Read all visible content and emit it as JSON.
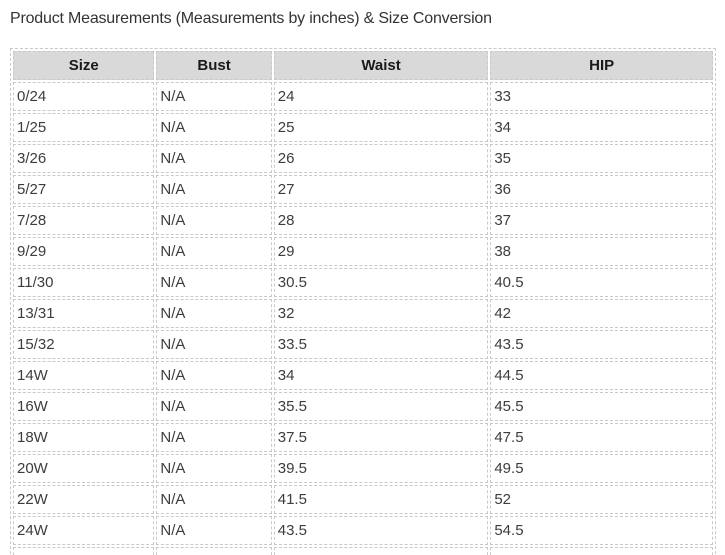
{
  "page": {
    "title": "Product Measurements (Measurements by inches) & Size Conversion"
  },
  "table": {
    "columns": [
      "Size",
      "Bust",
      "Waist",
      "HIP"
    ],
    "rows": [
      [
        "0/24",
        "N/A",
        "24",
        "33"
      ],
      [
        "1/25",
        "N/A",
        "25",
        "34"
      ],
      [
        "3/26",
        "N/A",
        "26",
        "35"
      ],
      [
        "5/27",
        "N/A",
        "27",
        "36"
      ],
      [
        "7/28",
        "N/A",
        "28",
        "37"
      ],
      [
        "9/29",
        "N/A",
        "29",
        "38"
      ],
      [
        "11/30",
        "N/A",
        "30.5",
        "40.5"
      ],
      [
        "13/31",
        "N/A",
        "32",
        "42"
      ],
      [
        "15/32",
        "N/A",
        "33.5",
        "43.5"
      ],
      [
        "14W",
        "N/A",
        "34",
        "44.5"
      ],
      [
        "16W",
        "N/A",
        "35.5",
        "45.5"
      ],
      [
        "18W",
        "N/A",
        "37.5",
        "47.5"
      ],
      [
        "20W",
        "N/A",
        "39.5",
        "49.5"
      ],
      [
        "22W",
        "N/A",
        "41.5",
        "52"
      ],
      [
        "24W",
        "N/A",
        "43.5",
        "54.5"
      ]
    ],
    "colors": {
      "header_bg": "#d9d9d9",
      "border": "#c9c9c9"
    }
  }
}
